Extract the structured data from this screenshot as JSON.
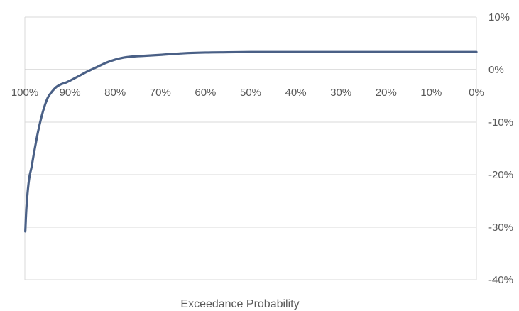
{
  "chart_data": {
    "type": "line",
    "title": "",
    "xlabel": "Exceedance Probability",
    "ylabel": "",
    "x_axis": {
      "ticks": [
        100,
        90,
        80,
        70,
        60,
        50,
        40,
        30,
        20,
        10,
        0
      ],
      "tick_labels": [
        "100%",
        "90%",
        "80%",
        "70%",
        "60%",
        "50%",
        "40%",
        "30%",
        "20%",
        "10%",
        "0%"
      ],
      "range": [
        100,
        0
      ],
      "reversed": true
    },
    "y_axis": {
      "ticks": [
        10,
        0,
        -10,
        -20,
        -30,
        -40
      ],
      "tick_labels": [
        "10%",
        "0%",
        "-10%",
        "-20%",
        "-30%",
        "-40%"
      ],
      "range": [
        -40,
        10
      ],
      "position": "right"
    },
    "grid": true,
    "legend": "none",
    "colors": {
      "line": "#4a6086",
      "grid": "#d9d9d9"
    },
    "series": [
      {
        "x": [
          99.9,
          99.7,
          99.4,
          99,
          98.5,
          98,
          97,
          96,
          95,
          94,
          93,
          92,
          91,
          90,
          88,
          86,
          84,
          82,
          80,
          78,
          76,
          74,
          70,
          65,
          60,
          55,
          50,
          45,
          40,
          30,
          20,
          10,
          0
        ],
        "values": [
          -30.8,
          -27.0,
          -23.5,
          -20.5,
          -18.5,
          -16.0,
          -11.5,
          -8.0,
          -5.5,
          -4.2,
          -3.3,
          -2.8,
          -2.5,
          -2.1,
          -1.2,
          -0.3,
          0.5,
          1.3,
          1.9,
          2.3,
          2.5,
          2.6,
          2.8,
          3.1,
          3.25,
          3.3,
          3.35,
          3.35,
          3.35,
          3.35,
          3.35,
          3.35,
          3.35
        ]
      }
    ]
  }
}
